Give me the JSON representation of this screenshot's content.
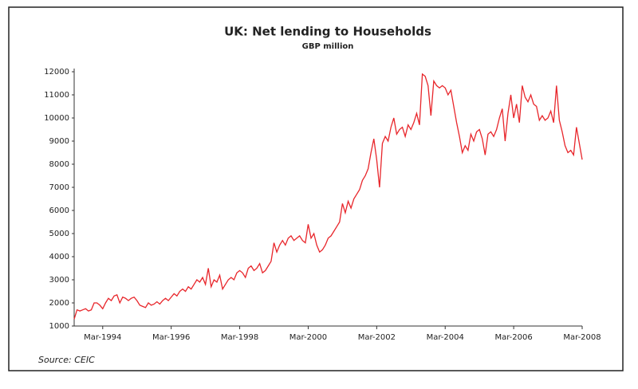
{
  "chart_data": {
    "type": "line",
    "title": "UK: Net lending to Households",
    "subtitle": "GBP million",
    "source": "Source: CEIC",
    "color": "#e8262b",
    "categories": [
      null,
      null,
      null,
      null,
      null,
      null,
      null,
      null,
      null,
      null,
      "Mar-1994",
      null,
      null,
      null,
      null,
      null,
      null,
      null,
      null,
      null,
      null,
      null,
      null,
      null,
      null,
      null,
      null,
      null,
      null,
      null,
      null,
      null,
      null,
      null,
      "Mar-1996",
      null,
      null,
      null,
      null,
      null,
      null,
      null,
      null,
      null,
      null,
      null,
      null,
      null,
      null,
      null,
      null,
      null,
      null,
      null,
      null,
      null,
      null,
      null,
      "Mar-1998",
      null,
      null,
      null,
      null,
      null,
      null,
      null,
      null,
      null,
      null,
      null,
      null,
      null,
      null,
      null,
      null,
      null,
      null,
      null,
      null,
      null,
      null,
      null,
      "Mar-2000",
      null,
      null,
      null,
      null,
      null,
      null,
      null,
      null,
      null,
      null,
      null,
      null,
      null,
      null,
      null,
      null,
      null,
      null,
      null,
      null,
      null,
      null,
      null,
      "Mar-2002",
      null,
      null,
      null,
      null,
      null,
      null,
      null,
      null,
      null,
      null,
      null,
      null,
      null,
      null,
      null,
      null,
      null,
      null,
      null,
      null,
      null,
      null,
      null,
      "Mar-2004",
      null,
      null,
      null,
      null,
      null,
      null,
      null,
      null,
      null,
      null,
      null,
      null,
      null,
      null,
      null,
      null,
      null,
      null,
      null,
      null,
      null,
      null,
      null,
      "Mar-2006",
      null,
      null,
      null,
      null,
      null,
      null,
      null,
      null,
      null,
      null,
      null,
      null,
      null,
      null,
      null,
      null,
      null,
      null,
      null,
      null,
      null,
      null,
      null,
      "Mar-2008"
    ],
    "values": [
      1300,
      1700,
      1650,
      1700,
      1750,
      1650,
      1700,
      2000,
      2000,
      1900,
      1750,
      2000,
      2200,
      2100,
      2300,
      2350,
      2000,
      2250,
      2200,
      2100,
      2200,
      2250,
      2100,
      1900,
      1850,
      1800,
      2000,
      1900,
      1950,
      2050,
      1950,
      2100,
      2200,
      2100,
      2250,
      2400,
      2300,
      2500,
      2600,
      2500,
      2700,
      2600,
      2800,
      3000,
      2900,
      3100,
      2800,
      3500,
      2700,
      3000,
      2900,
      3200,
      2600,
      2800,
      3000,
      3100,
      3000,
      3300,
      3400,
      3300,
      3100,
      3500,
      3600,
      3400,
      3500,
      3700,
      3300,
      3400,
      3600,
      3800,
      4600,
      4200,
      4500,
      4700,
      4500,
      4800,
      4900,
      4700,
      4800,
      4900,
      4700,
      4600,
      5400,
      4800,
      5000,
      4500,
      4200,
      4300,
      4500,
      4800,
      4900,
      5100,
      5300,
      5500,
      6300,
      5900,
      6400,
      6100,
      6500,
      6700,
      6900,
      7300,
      7500,
      7800,
      8500,
      9100,
      8200,
      7000,
      8900,
      9200,
      9000,
      9600,
      10000,
      9300,
      9500,
      9600,
      9200,
      9700,
      9500,
      9800,
      10200,
      9700,
      11900,
      11800,
      11400,
      10100,
      11600,
      11400,
      11300,
      11400,
      11300,
      11000,
      11200,
      10500,
      9800,
      9200,
      8500,
      8800,
      8600,
      9300,
      9000,
      9400,
      9500,
      9100,
      8400,
      9300,
      9400,
      9200,
      9500,
      10000,
      10400,
      9000,
      10200,
      11000,
      10000,
      10600,
      9800,
      11400,
      10900,
      10700,
      11000,
      10600,
      10500,
      9900,
      10100,
      9900,
      10000,
      10300,
      9800,
      11400,
      9900,
      9400,
      8800,
      8500,
      8600,
      8400,
      9600,
      8900,
      8200
    ],
    "ylim": [
      1000,
      12000
    ],
    "yticks": [
      1000,
      2000,
      3000,
      4000,
      5000,
      6000,
      7000,
      8000,
      9000,
      10000,
      11000,
      12000
    ]
  }
}
